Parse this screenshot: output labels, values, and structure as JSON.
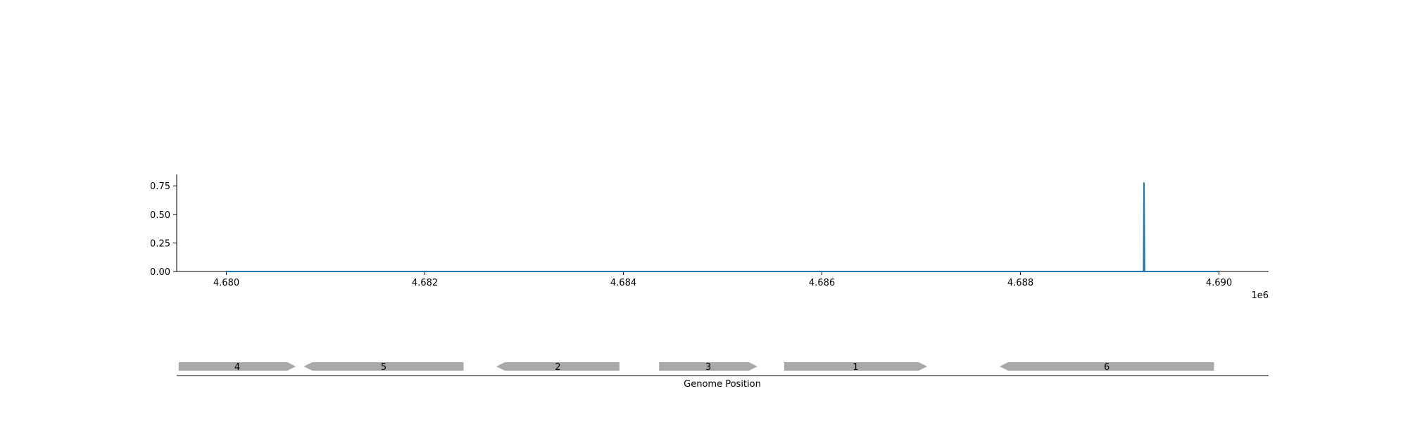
{
  "chart_data": {
    "type": "line",
    "title": "",
    "xlabel": "Genome Position",
    "ylabel": "",
    "x_offset_label": "1e6",
    "xlim": [
      4679500,
      4690500
    ],
    "ylim": [
      0,
      0.85
    ],
    "x_ticks": [
      4680000,
      4682000,
      4684000,
      4686000,
      4688000,
      4690000
    ],
    "x_tick_labels": [
      "4.680",
      "4.682",
      "4.684",
      "4.686",
      "4.688",
      "4.690"
    ],
    "y_ticks": [
      0,
      0.25,
      0.5,
      0.75
    ],
    "y_tick_labels": [
      "0.00",
      "0.25",
      "0.50",
      "0.75"
    ],
    "grid": false,
    "series": [
      {
        "color": "#1f77b4",
        "x": [
          4680000,
          4689240,
          4689245,
          4689250,
          4690000
        ],
        "y": [
          0,
          0,
          0.78,
          0,
          0
        ]
      }
    ],
    "genes": [
      {
        "label": "4",
        "start": 4679520,
        "end": 4680700,
        "strand": "+"
      },
      {
        "label": "5",
        "start": 4680780,
        "end": 4682390,
        "strand": "-"
      },
      {
        "label": "2",
        "start": 4682720,
        "end": 4683960,
        "strand": "-"
      },
      {
        "label": "3",
        "start": 4684360,
        "end": 4685350,
        "strand": "+"
      },
      {
        "label": "1",
        "start": 4685620,
        "end": 4687060,
        "strand": "+"
      },
      {
        "label": "6",
        "start": 4687790,
        "end": 4689950,
        "strand": "-"
      }
    ],
    "gene_color": "#a9a9a9"
  }
}
